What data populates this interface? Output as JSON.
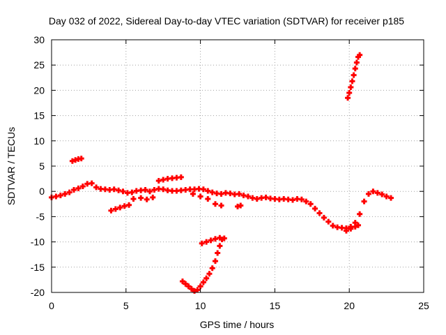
{
  "chart_data": {
    "type": "scatter",
    "title": "Day 032 of 2022, Sidereal Day-to-day VTEC variation (SDTVAR) for receiver p185",
    "xlabel": "GPS time / hours",
    "ylabel": "SDTVAR / TECUs",
    "xlim": [
      0,
      25
    ],
    "ylim": [
      -20,
      30
    ],
    "xticks": [
      0,
      5,
      10,
      15,
      20,
      25
    ],
    "yticks": [
      -20,
      -15,
      -10,
      -5,
      0,
      5,
      10,
      15,
      20,
      25,
      30
    ],
    "grid": true,
    "marker_color": "#ff0000",
    "series": [
      {
        "points": [
          [
            0.0,
            -1.2
          ],
          [
            0.3,
            -1.0
          ],
          [
            0.6,
            -0.8
          ],
          [
            0.9,
            -0.5
          ],
          [
            1.2,
            -0.2
          ],
          [
            1.5,
            0.3
          ],
          [
            1.8,
            0.6
          ],
          [
            2.1,
            1.0
          ],
          [
            2.4,
            1.5
          ],
          [
            2.7,
            1.6
          ],
          [
            3.0,
            0.8
          ],
          [
            3.3,
            0.5
          ],
          [
            3.6,
            0.4
          ],
          [
            3.9,
            0.3
          ],
          [
            4.2,
            0.4
          ],
          [
            4.5,
            0.2
          ],
          [
            4.8,
            0.0
          ],
          [
            5.1,
            -0.3
          ],
          [
            5.4,
            -0.2
          ],
          [
            5.7,
            0.1
          ],
          [
            6.0,
            0.2
          ],
          [
            6.3,
            0.3
          ],
          [
            6.6,
            0.0
          ],
          [
            6.9,
            0.3
          ],
          [
            7.2,
            0.5
          ],
          [
            7.5,
            0.4
          ],
          [
            7.8,
            0.2
          ],
          [
            8.1,
            0.1
          ],
          [
            8.4,
            0.1
          ],
          [
            8.7,
            0.2
          ],
          [
            9.0,
            0.3
          ],
          [
            9.3,
            0.4
          ],
          [
            9.6,
            0.4
          ],
          [
            9.9,
            0.5
          ],
          [
            10.2,
            0.4
          ],
          [
            10.5,
            0.1
          ],
          [
            10.8,
            -0.2
          ],
          [
            11.1,
            -0.4
          ],
          [
            11.4,
            -0.5
          ],
          [
            11.7,
            -0.3
          ],
          [
            12.0,
            -0.4
          ],
          [
            12.3,
            -0.6
          ],
          [
            12.6,
            -0.5
          ],
          [
            12.9,
            -0.8
          ],
          [
            13.2,
            -1.0
          ],
          [
            13.5,
            -1.3
          ],
          [
            13.8,
            -1.5
          ],
          [
            14.1,
            -1.3
          ],
          [
            14.4,
            -1.2
          ],
          [
            14.7,
            -1.4
          ],
          [
            15.0,
            -1.5
          ],
          [
            15.3,
            -1.6
          ],
          [
            15.6,
            -1.5
          ],
          [
            15.9,
            -1.6
          ],
          [
            16.2,
            -1.7
          ],
          [
            16.5,
            -1.5
          ],
          [
            16.8,
            -1.6
          ],
          [
            17.1,
            -2.0
          ],
          [
            17.4,
            -2.5
          ],
          [
            17.7,
            -3.4
          ],
          [
            18.0,
            -4.3
          ],
          [
            18.3,
            -5.2
          ],
          [
            18.6,
            -6.0
          ],
          [
            18.9,
            -6.8
          ],
          [
            19.2,
            -7.1
          ],
          [
            19.5,
            -7.2
          ],
          [
            19.8,
            -7.3
          ],
          [
            20.1,
            -7.0
          ],
          [
            20.4,
            -6.2
          ],
          [
            20.7,
            -4.5
          ],
          [
            21.0,
            -2.0
          ],
          [
            21.3,
            -0.5
          ],
          [
            21.6,
            0.0
          ],
          [
            21.9,
            -0.3
          ],
          [
            22.2,
            -0.6
          ],
          [
            22.5,
            -1.0
          ],
          [
            22.8,
            -1.3
          ],
          [
            1.4,
            6.0
          ],
          [
            1.6,
            6.2
          ],
          [
            1.8,
            6.4
          ],
          [
            2.0,
            6.5
          ],
          [
            4.0,
            -3.8
          ],
          [
            4.3,
            -3.5
          ],
          [
            4.6,
            -3.2
          ],
          [
            4.9,
            -2.9
          ],
          [
            5.2,
            -2.7
          ],
          [
            5.5,
            -1.5
          ],
          [
            6.0,
            -1.3
          ],
          [
            6.4,
            -1.6
          ],
          [
            6.8,
            -1.2
          ],
          [
            7.2,
            2.1
          ],
          [
            7.5,
            2.3
          ],
          [
            7.8,
            2.5
          ],
          [
            8.1,
            2.6
          ],
          [
            8.4,
            2.7
          ],
          [
            8.7,
            2.8
          ],
          [
            9.5,
            -0.5
          ],
          [
            10.0,
            -1.0
          ],
          [
            10.5,
            -1.5
          ],
          [
            11.0,
            -2.5
          ],
          [
            11.4,
            -2.8
          ],
          [
            12.5,
            -3.0
          ],
          [
            12.7,
            -2.8
          ],
          [
            8.8,
            -17.8
          ],
          [
            9.0,
            -18.3
          ],
          [
            9.2,
            -18.8
          ],
          [
            9.4,
            -19.3
          ],
          [
            9.6,
            -19.7
          ],
          [
            9.8,
            -19.5
          ],
          [
            10.0,
            -18.8
          ],
          [
            10.2,
            -18.0
          ],
          [
            10.4,
            -17.2
          ],
          [
            10.6,
            -16.3
          ],
          [
            10.8,
            -15.2
          ],
          [
            11.0,
            -13.8
          ],
          [
            11.15,
            -12.2
          ],
          [
            11.3,
            -10.8
          ],
          [
            11.45,
            -9.5
          ],
          [
            10.1,
            -10.3
          ],
          [
            10.4,
            -10.0
          ],
          [
            10.7,
            -9.7
          ],
          [
            11.0,
            -9.4
          ],
          [
            11.3,
            -9.2
          ],
          [
            11.6,
            -9.3
          ],
          [
            19.8,
            -7.8
          ],
          [
            20.1,
            -7.4
          ],
          [
            20.4,
            -7.0
          ],
          [
            20.6,
            -6.7
          ],
          [
            19.9,
            18.5
          ],
          [
            20.0,
            19.5
          ],
          [
            20.1,
            20.6
          ],
          [
            20.2,
            21.8
          ],
          [
            20.3,
            23.0
          ],
          [
            20.4,
            24.3
          ],
          [
            20.5,
            25.5
          ],
          [
            20.6,
            26.6
          ],
          [
            20.7,
            27.0
          ]
        ]
      }
    ]
  }
}
